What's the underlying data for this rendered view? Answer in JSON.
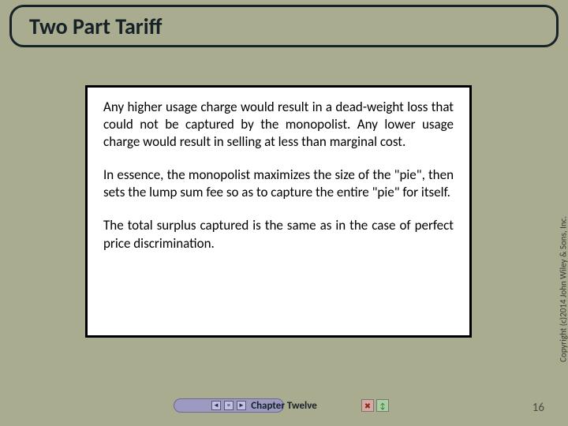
{
  "title": "Two Part Tariff",
  "paragraphs": {
    "p1": "Any higher usage charge would result in a dead-weight loss that could not be captured by the monopolist. Any lower usage charge would result in selling at less than marginal cost.",
    "p2": "In essence, the monopolist maximizes the size of the \"pie\", then sets the lump sum fee so as to capture the entire \"pie\" for itself.",
    "p3": "The total surplus captured is the same as in the case of perfect price discrimination."
  },
  "copyright": "Copyright (c)2014 John Wiley & Sons, Inc.",
  "footer": {
    "chapter": "Chapter Twelve",
    "nav_prev": "◄",
    "nav_list": "≡",
    "nav_next": "►",
    "btn_close": "✖",
    "btn_info": "↕"
  },
  "page_number": "16",
  "colors": {
    "slide_bg": "#aaac90",
    "title_border": "#162228",
    "content_bg": "#ffffff",
    "content_border": "#000000",
    "pill_bg": "#9d9ac2"
  }
}
